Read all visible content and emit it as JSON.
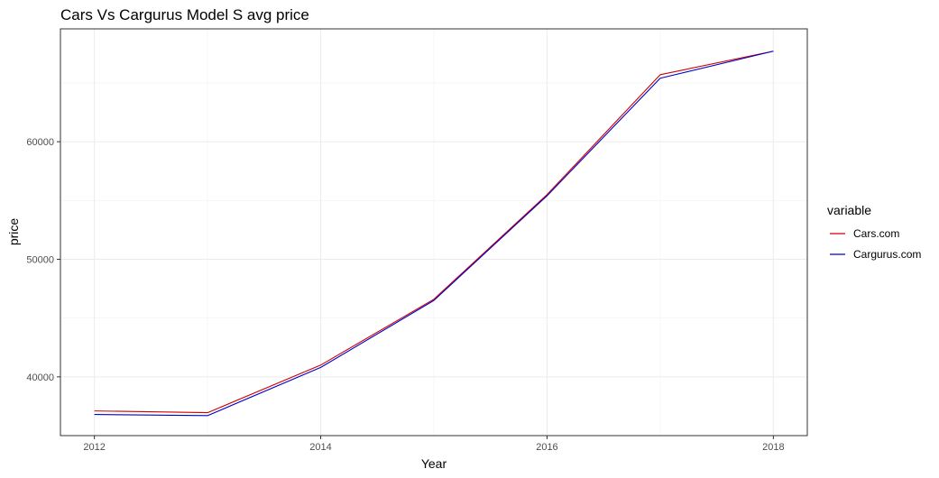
{
  "chart_data": {
    "type": "line",
    "title": "Cars Vs Cargurus Model S avg price",
    "xlabel": "Year",
    "ylabel": "price",
    "x": [
      2012,
      2013,
      2014,
      2015,
      2016,
      2017,
      2018
    ],
    "x_ticks": [
      2012,
      2014,
      2016,
      2018
    ],
    "y_ticks": [
      40000,
      50000,
      60000
    ],
    "xlim": [
      2011.7,
      2018.3
    ],
    "ylim": [
      35000,
      69600
    ],
    "grid": true,
    "legend": {
      "title": "variable",
      "placement": "right"
    },
    "series": [
      {
        "name": "Cars.com",
        "color": "#cc0000",
        "values": [
          37100,
          36950,
          41000,
          46600,
          55500,
          65700,
          67700
        ]
      },
      {
        "name": "Cargurus.com",
        "color": "#0000cc",
        "values": [
          36800,
          36700,
          40800,
          46500,
          55400,
          65400,
          67700
        ]
      }
    ]
  }
}
